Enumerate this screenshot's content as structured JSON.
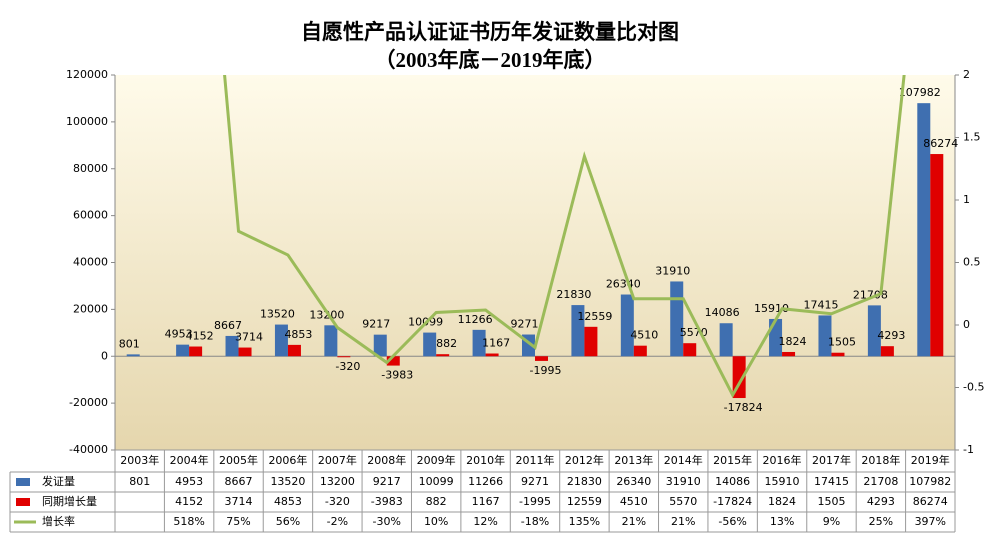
{
  "chart_data": {
    "type": "combo",
    "title": "自愿性产品认证证书历年发证数量比对图",
    "subtitle": "（2003年底－2019年底）",
    "categories": [
      "2003年",
      "2004年",
      "2005年",
      "2006年",
      "2007年",
      "2008年",
      "2009年",
      "2010年",
      "2011年",
      "2012年",
      "2013年",
      "2014年",
      "2015年",
      "2016年",
      "2017年",
      "2018年",
      "2019年"
    ],
    "series": [
      {
        "name": "发证量",
        "type": "bar",
        "color": "#3f6fb0",
        "values": [
          801,
          4953,
          8667,
          13520,
          13200,
          9217,
          10099,
          11266,
          9271,
          21830,
          26340,
          31910,
          14086,
          15910,
          17415,
          21708,
          107982
        ]
      },
      {
        "name": "同期增长量",
        "type": "bar",
        "color": "#e00000",
        "values": [
          null,
          4152,
          3714,
          4853,
          -320,
          -3983,
          882,
          1167,
          -1995,
          12559,
          4510,
          5570,
          -17824,
          1824,
          1505,
          4293,
          86274
        ]
      },
      {
        "name": "增长率",
        "type": "line",
        "axis": "y2",
        "color": "#9bbb59",
        "values": [
          null,
          5.18,
          0.75,
          0.56,
          -0.02,
          -0.3,
          0.1,
          0.12,
          -0.18,
          1.35,
          0.21,
          0.21,
          -0.56,
          0.13,
          0.09,
          0.25,
          3.97
        ],
        "value_labels": [
          null,
          "518%",
          "75%",
          "56%",
          "-2%",
          "-30%",
          "10%",
          "12%",
          "-18%",
          "135%",
          "21%",
          "21%",
          "-56%",
          "13%",
          "9%",
          "25%",
          "397%"
        ]
      }
    ],
    "ylim": [
      -40000,
      120000
    ],
    "yticks": [
      -40000,
      -20000,
      0,
      20000,
      40000,
      60000,
      80000,
      100000,
      120000
    ],
    "y2lim": [
      -1,
      2
    ],
    "y2ticks": [
      -1,
      -0.5,
      0,
      0.5,
      1,
      1.5,
      2
    ],
    "grid": false
  }
}
